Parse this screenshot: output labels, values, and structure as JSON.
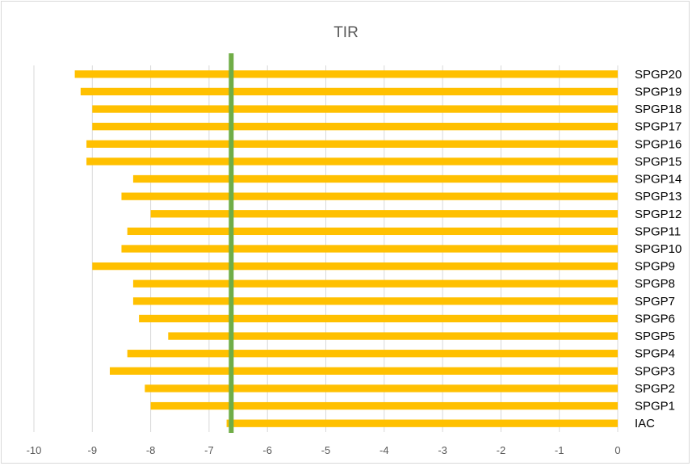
{
  "chart_data": {
    "type": "bar",
    "orientation": "horizontal",
    "title": "TIR",
    "xlabel": "",
    "ylabel": "",
    "xlim": [
      -10,
      0
    ],
    "x_ticks": [
      "-10",
      "-9",
      "-8",
      "-7",
      "-6",
      "-5",
      "-4",
      "-3",
      "-2",
      "-1",
      "0"
    ],
    "categories": [
      "IAC",
      "SPGP1",
      "SPGP2",
      "SPGP3",
      "SPGP4",
      "SPGP5",
      "SPGP6",
      "SPGP7",
      "SPGP8",
      "SPGP9",
      "SPGP10",
      "SPGP11",
      "SPGP12",
      "SPGP13",
      "SPGP14",
      "SPGP15",
      "SPGP16",
      "SPGP17",
      "SPGP18",
      "SPGP19",
      "SPGP20"
    ],
    "values": [
      -6.7,
      -8.0,
      -8.1,
      -8.7,
      -8.4,
      -7.7,
      -8.2,
      -8.3,
      -8.3,
      -9.0,
      -8.5,
      -8.4,
      -8.0,
      -8.5,
      -8.3,
      -9.1,
      -9.1,
      -9.0,
      -9.0,
      -9.2,
      -9.3
    ],
    "reference_line": {
      "x": -6.62
    },
    "grid": "vertical",
    "legend": "none",
    "bar_color": "#FFC000",
    "reference_line_color": "#70AD47",
    "grid_color": "#D9D9D9"
  }
}
